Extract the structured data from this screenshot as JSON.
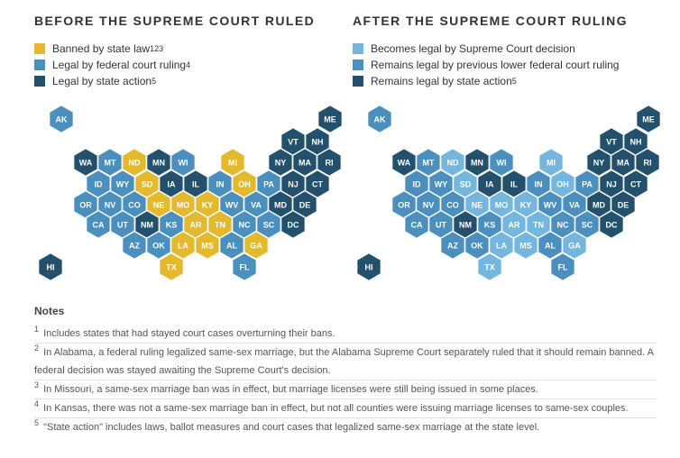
{
  "left": {
    "title": "BEFORE THE SUPREME COURT RULED",
    "legend": [
      {
        "label": "Banned by state law",
        "sup": "123",
        "color": "#e5b92e"
      },
      {
        "label": "Legal by federal court ruling",
        "sup": "4",
        "color": "#4a8fbd"
      },
      {
        "label": "Legal by state action",
        "sup": "5",
        "color": "#23506d"
      }
    ]
  },
  "right": {
    "title": "AFTER THE SUPREME COURT RULING",
    "legend": [
      {
        "label": "Becomes legal by Supreme Court decision",
        "sup": "",
        "color": "#74b6dd"
      },
      {
        "label": "Remains legal by previous lower federal court ruling",
        "sup": "",
        "color": "#4a8fbd"
      },
      {
        "label": "Remains legal by state action",
        "sup": "5",
        "color": "#23506d"
      }
    ]
  },
  "map": {
    "states": [
      {
        "abbr": "AK",
        "status": "federal"
      },
      {
        "abbr": "ME",
        "status": "state"
      },
      {
        "abbr": "VT",
        "status": "state"
      },
      {
        "abbr": "NH",
        "status": "state"
      },
      {
        "abbr": "WA",
        "status": "state"
      },
      {
        "abbr": "MT",
        "status": "federal"
      },
      {
        "abbr": "ND",
        "status": "banned"
      },
      {
        "abbr": "MN",
        "status": "state"
      },
      {
        "abbr": "WI",
        "status": "federal"
      },
      {
        "abbr": "MI",
        "status": "banned"
      },
      {
        "abbr": "NY",
        "status": "state"
      },
      {
        "abbr": "MA",
        "status": "state"
      },
      {
        "abbr": "RI",
        "status": "state"
      },
      {
        "abbr": "ID",
        "status": "federal"
      },
      {
        "abbr": "WY",
        "status": "federal"
      },
      {
        "abbr": "SD",
        "status": "banned"
      },
      {
        "abbr": "IA",
        "status": "state"
      },
      {
        "abbr": "IL",
        "status": "state"
      },
      {
        "abbr": "IN",
        "status": "federal"
      },
      {
        "abbr": "OH",
        "status": "banned"
      },
      {
        "abbr": "PA",
        "status": "federal"
      },
      {
        "abbr": "NJ",
        "status": "state"
      },
      {
        "abbr": "CT",
        "status": "state"
      },
      {
        "abbr": "OR",
        "status": "federal"
      },
      {
        "abbr": "NV",
        "status": "federal"
      },
      {
        "abbr": "CO",
        "status": "federal"
      },
      {
        "abbr": "NE",
        "status": "banned"
      },
      {
        "abbr": "MO",
        "status": "banned"
      },
      {
        "abbr": "KY",
        "status": "banned"
      },
      {
        "abbr": "WV",
        "status": "federal"
      },
      {
        "abbr": "VA",
        "status": "federal"
      },
      {
        "abbr": "MD",
        "status": "state"
      },
      {
        "abbr": "DE",
        "status": "state"
      },
      {
        "abbr": "CA",
        "status": "federal"
      },
      {
        "abbr": "UT",
        "status": "federal"
      },
      {
        "abbr": "NM",
        "status": "state"
      },
      {
        "abbr": "KS",
        "status": "federal"
      },
      {
        "abbr": "AR",
        "status": "banned"
      },
      {
        "abbr": "TN",
        "status": "banned"
      },
      {
        "abbr": "NC",
        "status": "federal"
      },
      {
        "abbr": "SC",
        "status": "federal"
      },
      {
        "abbr": "DC",
        "status": "state"
      },
      {
        "abbr": "AZ",
        "status": "federal"
      },
      {
        "abbr": "OK",
        "status": "federal"
      },
      {
        "abbr": "LA",
        "status": "banned"
      },
      {
        "abbr": "MS",
        "status": "banned"
      },
      {
        "abbr": "AL",
        "status": "federal"
      },
      {
        "abbr": "GA",
        "status": "banned"
      },
      {
        "abbr": "HI",
        "status": "state"
      },
      {
        "abbr": "TX",
        "status": "banned"
      },
      {
        "abbr": "FL",
        "status": "federal"
      }
    ]
  },
  "colors": {
    "banned": "#e5b92e",
    "federal": "#4a8fbd",
    "state": "#23506d",
    "scotus": "#74b6dd"
  },
  "notes": {
    "title": "Notes",
    "items": [
      {
        "num": "1",
        "text": "Includes states that had stayed court cases overturning their bans."
      },
      {
        "num": "2",
        "text": "In Alabama, a federal ruling legalized same-sex marriage, but the Alabama Supreme Court separately ruled that it should remain banned. A federal decision was stayed awaiting the Supreme Court's decision."
      },
      {
        "num": "3",
        "text": "In Missouri, a same-sex marriage ban was in effect, but marriage licenses were still being issued in some places."
      },
      {
        "num": "4",
        "text": "In Kansas, there was not a same-sex marriage ban in effect, but not all counties were issuing marriage licenses to same-sex couples."
      },
      {
        "num": "5",
        "text": "\"State action\" includes laws, ballot measures and court cases that legalized same-sex marriage at the state level."
      }
    ]
  }
}
